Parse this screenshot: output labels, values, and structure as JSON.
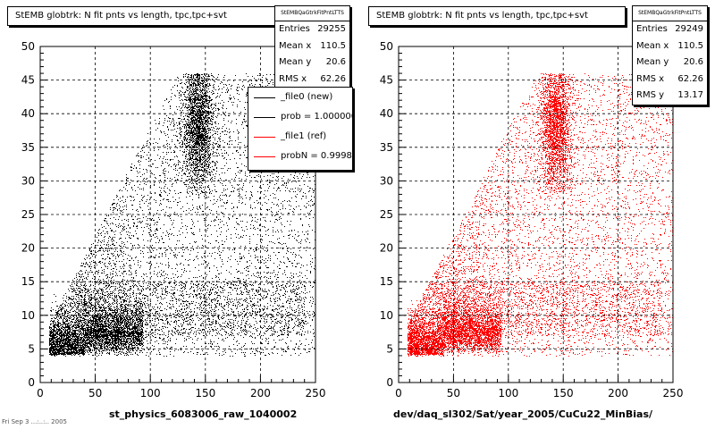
{
  "footer_text": "Fri Sep 3 ...:..:.. 2005",
  "chart_data": [
    {
      "type": "scatter",
      "title": "StEMB globtrk: N fit pnts vs length, tpc,tpc+svt",
      "xlabel": "st_physics_6083006_raw_1040002",
      "ylabel": "",
      "xlim": [
        0,
        250
      ],
      "ylim": [
        0,
        50
      ],
      "x_ticks": [
        "0",
        "50",
        "100",
        "150",
        "200",
        "250"
      ],
      "y_ticks": [
        "0",
        "5",
        "10",
        "15",
        "20",
        "25",
        "30",
        "35",
        "40",
        "45",
        "50"
      ],
      "grid": true,
      "marker_color": "#000000",
      "points_rendered": 14000,
      "density_description": [
        {
          "region": "low band",
          "x": [
            5,
            90
          ],
          "y": [
            4,
            12
          ]
        },
        {
          "region": "upper cluster",
          "x": [
            128,
            160
          ],
          "y": [
            30,
            46
          ]
        },
        {
          "region": "diffuse triangle",
          "x": [
            10,
            250
          ],
          "y": [
            4,
            46
          ]
        }
      ],
      "stats": {
        "name": "StEMBQaGtrkFitPntLTTS",
        "rows": [
          {
            "label": "Entries",
            "value": "29255"
          },
          {
            "label": "Mean x",
            "value": "110.5"
          },
          {
            "label": "Mean y",
            "value": "20.6"
          },
          {
            "label": "RMS x",
            "value": "62.26"
          }
        ]
      },
      "legend": {
        "entries": [
          {
            "label": "_file0 (new)",
            "color": "#000000"
          },
          {
            "label": "prob = 1.000000",
            "color": "#000000"
          },
          {
            "label": "_file1 (ref)",
            "color": "#ff0000"
          },
          {
            "label": "probN = 0.99980",
            "color": "#ff0000"
          }
        ]
      }
    },
    {
      "type": "scatter",
      "title": "StEMB globtrk: N fit pnts vs length, tpc,tpc+svt",
      "xlabel": "dev/daq_sl302/Sat/year_2005/CuCu22_MinBias/",
      "ylabel": "",
      "xlim": [
        0,
        250
      ],
      "ylim": [
        0,
        50
      ],
      "x_ticks": [
        "0",
        "50",
        "100",
        "150",
        "200",
        "250"
      ],
      "y_ticks": [
        "0",
        "5",
        "10",
        "15",
        "20",
        "25",
        "30",
        "35",
        "40",
        "45",
        "50"
      ],
      "grid": true,
      "marker_color": "#ff0000",
      "points_rendered": 14000,
      "stats": {
        "name": "StEMBQaGtrkFitPntLTTS",
        "rows": [
          {
            "label": "Entries",
            "value": "29249"
          },
          {
            "label": "Mean x",
            "value": "110.5"
          },
          {
            "label": "Mean y",
            "value": "20.6"
          },
          {
            "label": "RMS x",
            "value": "62.26"
          },
          {
            "label": "RMS y",
            "value": "13.17"
          }
        ]
      }
    }
  ]
}
